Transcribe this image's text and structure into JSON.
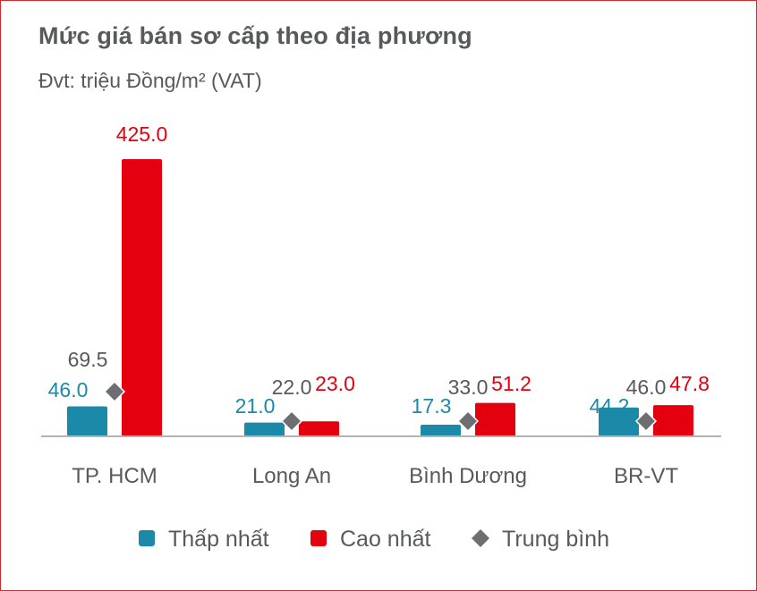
{
  "title": "Mức giá bán sơ cấp theo địa phương",
  "subtitle": "Đvt: triệu Đồng/m² (VAT)",
  "colors": {
    "low": "#1a8aa8",
    "high": "#e3000f",
    "avg": "#6d6e71",
    "text": "#58595b",
    "axis": "#b3b3b3"
  },
  "chart_data": {
    "type": "bar",
    "categories": [
      "TP. HCM",
      "Long An",
      "Bình Dương",
      "BR-VT"
    ],
    "series": [
      {
        "name": "Thấp nhất",
        "kind": "bar",
        "color": "#1a8aa8",
        "values": [
          46.0,
          21.0,
          17.3,
          44.2
        ],
        "labels": [
          "46.0",
          "21.0",
          "17.3",
          "44.2"
        ]
      },
      {
        "name": "Cao nhất",
        "kind": "bar",
        "color": "#e3000f",
        "values": [
          425.0,
          23.0,
          51.2,
          47.8
        ],
        "labels": [
          "425.0",
          "23.0",
          "51.2",
          "47.8"
        ]
      },
      {
        "name": "Trung bình",
        "kind": "marker",
        "color": "#6d6e71",
        "values": [
          69.5,
          22.0,
          33.0,
          46.0
        ],
        "labels": [
          "69.5",
          "22.0",
          "33.0",
          "46.0"
        ]
      }
    ],
    "ylim": [
      0,
      425
    ],
    "grid": false,
    "legend_position": "bottom"
  }
}
